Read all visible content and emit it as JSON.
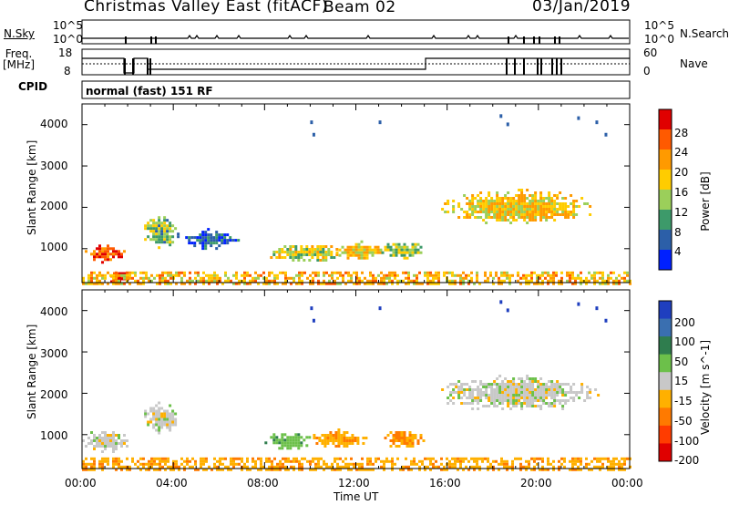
{
  "header": {
    "station": "Christmas Valley East (fitACF)",
    "beam": "Beam 02",
    "date": "03/Jan/2019"
  },
  "top_panels": {
    "nsky_label": "N.Sky",
    "nsearch_label": "N.Search",
    "nsky_ticks": [
      "10^5",
      "10^0"
    ],
    "nsearch_ticks": [
      "10^5",
      "10^0"
    ],
    "freq_label": "Freq.\n[MHz]",
    "freq_ticks": [
      "18",
      "8"
    ],
    "nave_label": "Nave",
    "nave_ticks": [
      "60",
      "0"
    ],
    "cpid_label": "CPID",
    "cpid_value": "normal (fast) 151 RF"
  },
  "panels": {
    "ylabel": "Slant Range [km]",
    "yticks": [
      "4000",
      "3000",
      "2000",
      "1000"
    ],
    "xlabel": "Time UT",
    "xticks": [
      "00:00",
      "04:00",
      "08:00",
      "12:00",
      "16:00",
      "20:00",
      "00:00"
    ]
  },
  "power_colorbar": {
    "label": "Power [dB]",
    "ticks": [
      "28",
      "24",
      "20",
      "16",
      "12",
      "8",
      "4"
    ],
    "colors": [
      "#e00000",
      "#ff5a00",
      "#ff9a00",
      "#ffcc00",
      "#9bcf5a",
      "#3d9a6a",
      "#2c5fa8",
      "#0020ff"
    ]
  },
  "velocity_colorbar": {
    "label": "Velocity [m s^-1]",
    "ticks": [
      "200",
      "100",
      "50",
      "15",
      "-15",
      "-50",
      "-100",
      "-200"
    ],
    "colors": [
      "#1f3fbf",
      "#3a6fb0",
      "#2f7d4e",
      "#6cc04a",
      "#c8c8c8",
      "#ffb000",
      "#ff7a00",
      "#ff3c00",
      "#e00000"
    ]
  },
  "chart_data": [
    {
      "type": "heatmap",
      "title": "Power [dB]",
      "xlabel": "Time UT",
      "ylabel": "Slant Range [km]",
      "xlim": [
        0,
        24
      ],
      "ylim": [
        180,
        4500
      ],
      "zlim": [
        0,
        32
      ],
      "patches": [
        {
          "t0": 0.0,
          "t1": 1.9,
          "r0": 700,
          "r1": 1100,
          "z": 28
        },
        {
          "t0": 1.0,
          "t1": 2.1,
          "r0": 200,
          "r1": 500,
          "z": 30
        },
        {
          "t0": 2.6,
          "t1": 4.2,
          "r0": 1050,
          "r1": 1850,
          "z": 12
        },
        {
          "t0": 4.4,
          "t1": 6.8,
          "r0": 1000,
          "r1": 1500,
          "z": 6
        },
        {
          "t0": 8.0,
          "t1": 11.3,
          "r0": 700,
          "r1": 1150,
          "z": 16
        },
        {
          "t0": 11.0,
          "t1": 13.2,
          "r0": 750,
          "r1": 1200,
          "z": 18
        },
        {
          "t0": 13.0,
          "t1": 15.1,
          "r0": 800,
          "r1": 1200,
          "z": 14
        },
        {
          "t0": 15.5,
          "t1": 22.6,
          "r0": 1600,
          "r1": 2450,
          "z": 18
        },
        {
          "t0": 0.0,
          "t1": 24.0,
          "r0": 180,
          "r1": 450,
          "z": 20
        }
      ]
    },
    {
      "type": "heatmap",
      "title": "Velocity [m s^-1]",
      "xlabel": "Time UT",
      "ylabel": "Slant Range [km]",
      "xlim": [
        0,
        24
      ],
      "ylim": [
        180,
        4500
      ],
      "zlim": [
        -250,
        250
      ],
      "patches": [
        {
          "t0": 0.0,
          "t1": 2.1,
          "r0": 600,
          "r1": 1150,
          "z": 0
        },
        {
          "t0": 2.6,
          "t1": 4.2,
          "r0": 1050,
          "r1": 1800,
          "z": 0
        },
        {
          "t0": 8.0,
          "t1": 10.0,
          "r0": 650,
          "r1": 1100,
          "z": 40
        },
        {
          "t0": 10.0,
          "t1": 12.5,
          "r0": 700,
          "r1": 1150,
          "z": -40
        },
        {
          "t0": 13.0,
          "t1": 15.0,
          "r0": 700,
          "r1": 1150,
          "z": -45
        },
        {
          "t0": 15.5,
          "t1": 22.6,
          "r0": 1600,
          "r1": 2450,
          "z": 0
        },
        {
          "t0": 0.0,
          "t1": 24.0,
          "r0": 180,
          "r1": 450,
          "z": -40
        }
      ]
    }
  ]
}
